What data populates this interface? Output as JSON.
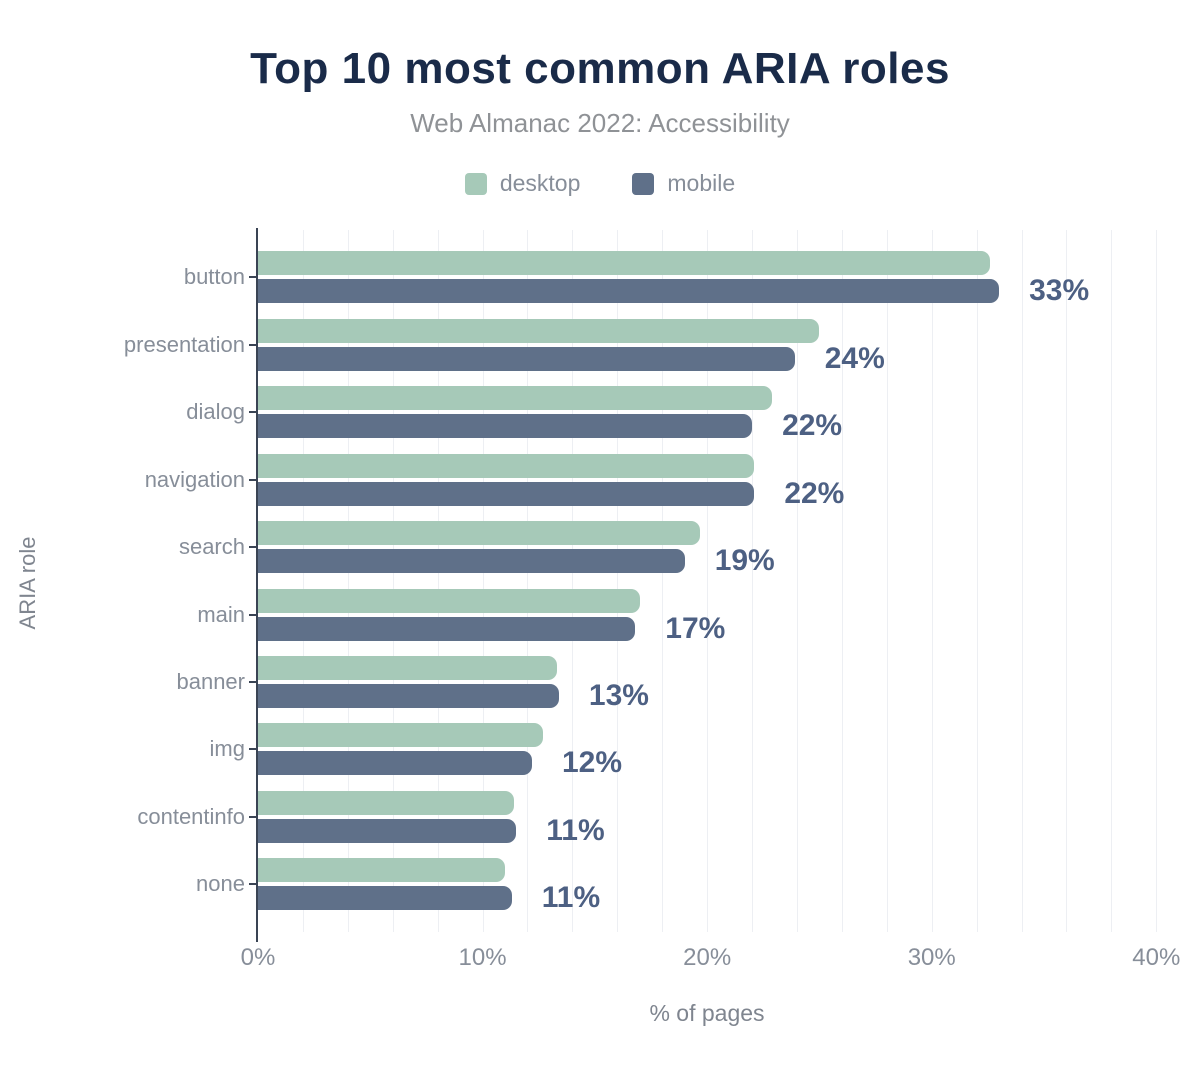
{
  "title": "Top 10 most common ARIA roles",
  "subtitle": "Web Almanac 2022: Accessibility",
  "colors": {
    "desktop": "#a6c9b8",
    "mobile": "#5f7089",
    "title": "#1a2b49",
    "subtitle": "#8f9296",
    "value_label": "#4d6083",
    "axis_text": "#878e99",
    "axis_title": "#7f858f",
    "axis_line": "#3a4454",
    "gridline": "#edeff3",
    "bg": "#ffffff"
  },
  "chart_data": {
    "type": "bar",
    "orientation": "horizontal",
    "title": "Top 10 most common ARIA roles",
    "subtitle": "Web Almanac 2022: Accessibility",
    "xlabel": "% of pages",
    "ylabel": "ARIA role",
    "legend_position": "top",
    "grid": "vertical",
    "grid_step": 2,
    "xlim": [
      0,
      41.5
    ],
    "categories": [
      "button",
      "presentation",
      "dialog",
      "navigation",
      "search",
      "main",
      "banner",
      "img",
      "contentinfo",
      "none"
    ],
    "series": [
      {
        "name": "desktop",
        "values": [
          32.6,
          25.0,
          22.9,
          22.1,
          19.7,
          17.0,
          13.3,
          12.7,
          11.4,
          11.0
        ]
      },
      {
        "name": "mobile",
        "values": [
          33.0,
          23.9,
          22.0,
          22.1,
          19.0,
          16.8,
          13.4,
          12.2,
          11.5,
          11.3
        ]
      }
    ],
    "value_labels": [
      "33%",
      "24%",
      "22%",
      "22%",
      "19%",
      "17%",
      "13%",
      "12%",
      "11%",
      "11%"
    ],
    "x_ticks": [
      {
        "value": 0,
        "label": "0%"
      },
      {
        "value": 10,
        "label": "10%"
      },
      {
        "value": 20,
        "label": "20%"
      },
      {
        "value": 30,
        "label": "30%"
      },
      {
        "value": 40,
        "label": "40%"
      }
    ]
  }
}
